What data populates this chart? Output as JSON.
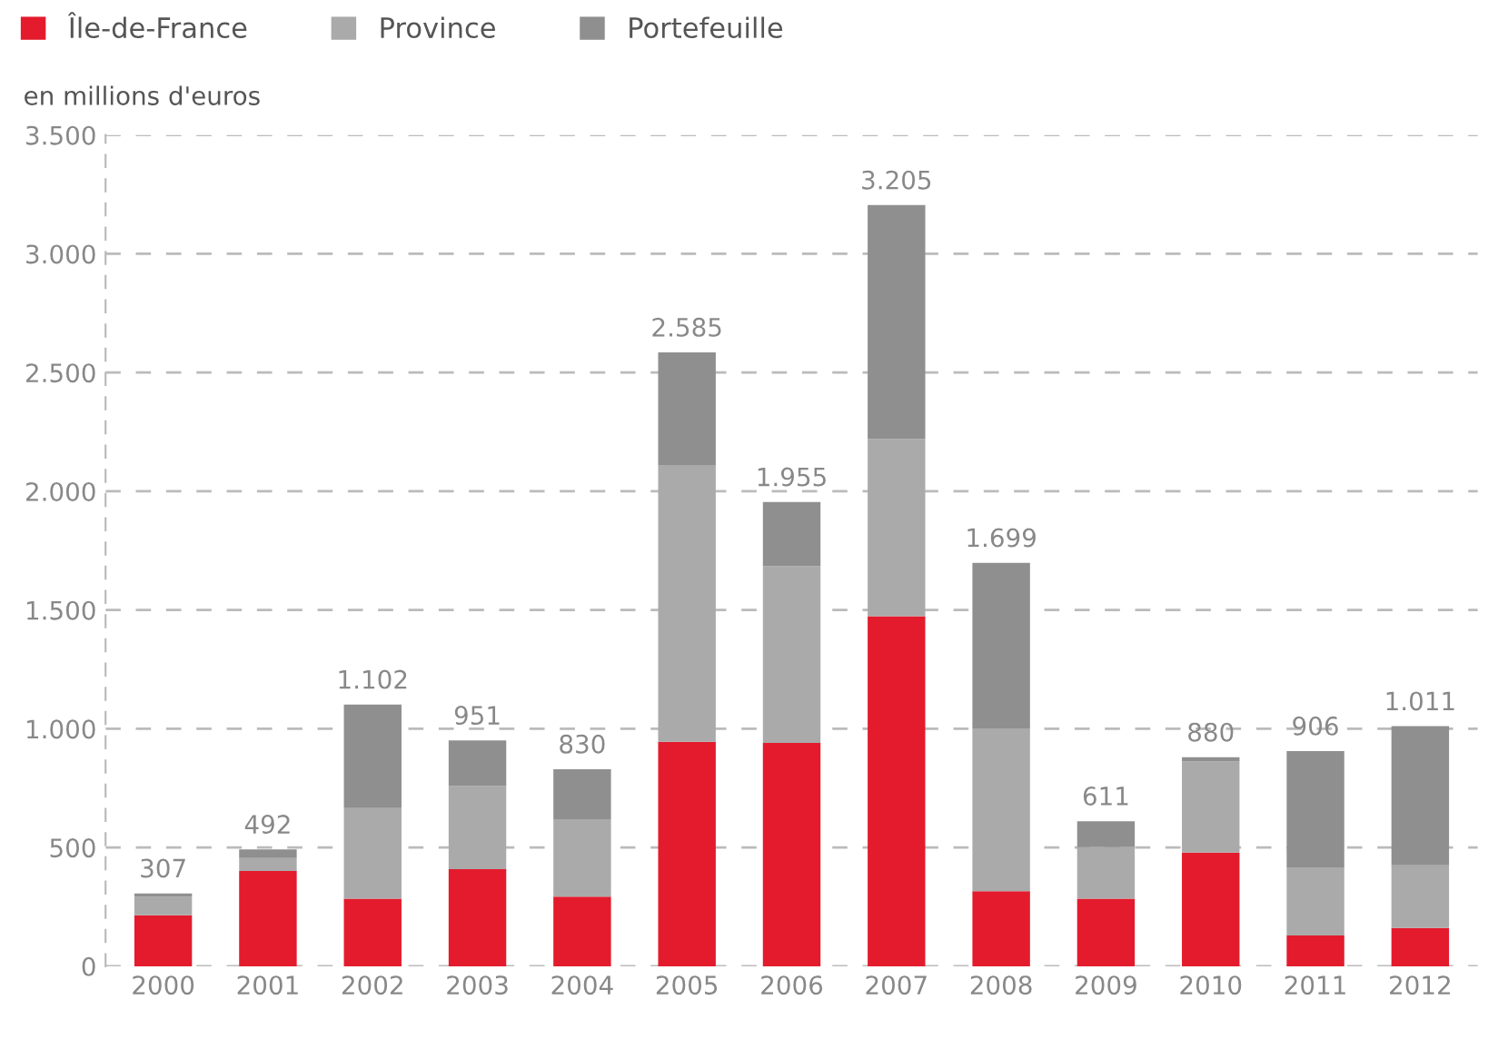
{
  "chart_data": {
    "type": "bar",
    "stacked": true,
    "ylabel": "en millions d'euros",
    "categories": [
      "2000",
      "2001",
      "2002",
      "2003",
      "2004",
      "2005",
      "2006",
      "2007",
      "2008",
      "2009",
      "2010",
      "2011",
      "2012"
    ],
    "series": [
      {
        "name": "Île-de-France",
        "color": "#e31b2d",
        "values": [
          215,
          401,
          285,
          409,
          293,
          945,
          940,
          1474,
          316,
          285,
          479,
          130,
          161
        ]
      },
      {
        "name": "Province",
        "color": "#aaaaaa",
        "values": [
          78,
          55,
          381,
          350,
          326,
          1166,
          744,
          746,
          686,
          217,
          383,
          287,
          264
        ]
      },
      {
        "name": "Portefeuille",
        "color": "#8f8f90",
        "values": [
          14,
          36,
          436,
          192,
          211,
          474,
          271,
          985,
          697,
          109,
          18,
          489,
          586
        ]
      }
    ],
    "totals": [
      "307",
      "492",
      "1.102",
      "951",
      "830",
      "2.585",
      "1.955",
      "3.205",
      "1.699",
      "611",
      "880",
      "906",
      "1.011"
    ],
    "ylim": [
      0,
      3500
    ],
    "yticks": [
      {
        "value": 0,
        "label": "0"
      },
      {
        "value": 500,
        "label": "500"
      },
      {
        "value": 1000,
        "label": "1.000"
      },
      {
        "value": 1500,
        "label": "1.500"
      },
      {
        "value": 2000,
        "label": "2.000"
      },
      {
        "value": 2500,
        "label": "2.500"
      },
      {
        "value": 3000,
        "label": "3.000"
      },
      {
        "value": 3500,
        "label": "3.500"
      }
    ],
    "grid": "y",
    "legend": "top left"
  }
}
